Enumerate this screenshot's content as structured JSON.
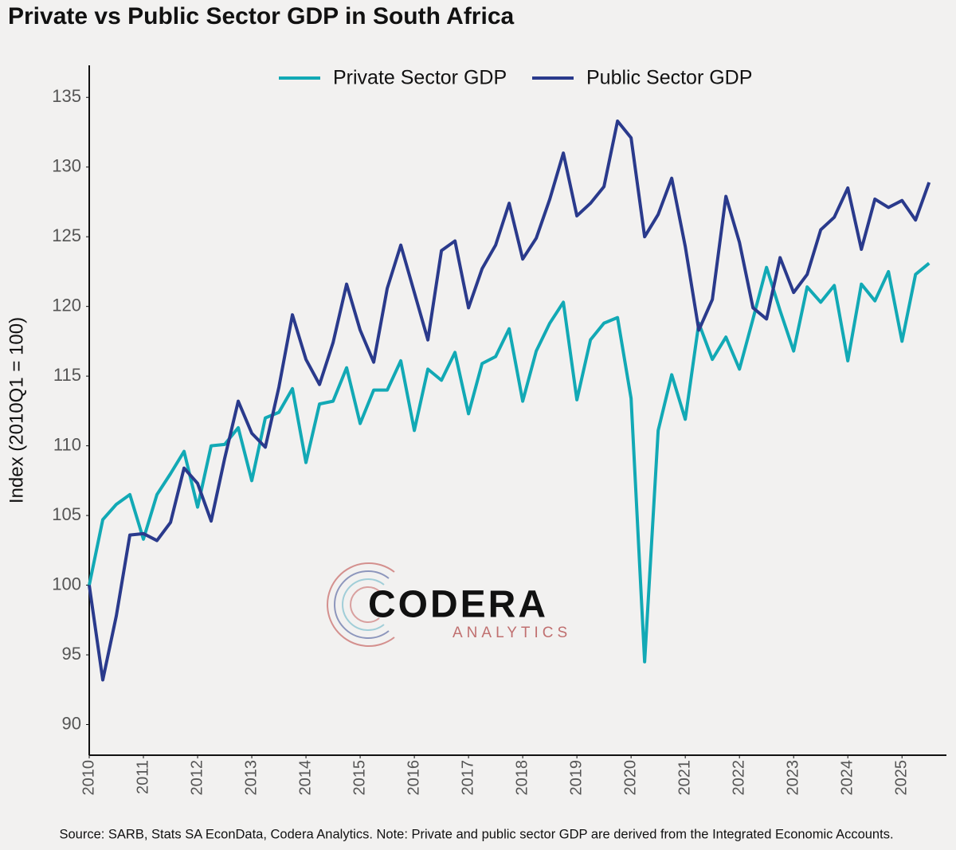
{
  "chart_data": {
    "type": "line",
    "title": "Private vs Public Sector GDP in South Africa",
    "y_label": "Index (2010Q1 = 100)",
    "source": "Source: SARB, Stats SA EconData, Codera Analytics. Note: Private and public sector GDP are derived from the Integrated Economic Accounts.",
    "logo": {
      "name": "CODERA",
      "tagline": "ANALYTICS"
    },
    "legend": "top",
    "xlim": [
      2010,
      2025.82
    ],
    "xticks": [
      2010,
      2011,
      2012,
      2013,
      2014,
      2015,
      2016,
      2017,
      2018,
      2019,
      2020,
      2021,
      2022,
      2023,
      2024,
      2025
    ],
    "ylim": [
      87.8,
      137.3
    ],
    "yticks": [
      90,
      95,
      100,
      105,
      110,
      115,
      120,
      125,
      130,
      135
    ],
    "x": [
      2010,
      2010.25,
      2010.5,
      2010.75,
      2011,
      2011.25,
      2011.5,
      2011.75,
      2012,
      2012.25,
      2012.5,
      2012.75,
      2013,
      2013.25,
      2013.5,
      2013.75,
      2014,
      2014.25,
      2014.5,
      2014.75,
      2015,
      2015.25,
      2015.5,
      2015.75,
      2016,
      2016.25,
      2016.5,
      2016.75,
      2017,
      2017.25,
      2017.5,
      2017.75,
      2018,
      2018.25,
      2018.5,
      2018.75,
      2019,
      2019.25,
      2019.5,
      2019.75,
      2020,
      2020.25,
      2020.5,
      2020.75,
      2021,
      2021.25,
      2021.5,
      2021.75,
      2022,
      2022.25,
      2022.5,
      2022.75,
      2023,
      2023.25,
      2023.5,
      2023.75,
      2024,
      2024.25,
      2024.5,
      2024.75,
      2025,
      2025.25,
      2025.5
    ],
    "series": [
      {
        "name": "Private Sector GDP",
        "color": "#12a9b5",
        "values": [
          100,
          104.7,
          105.8,
          106.5,
          103.3,
          106.5,
          108.0,
          109.6,
          105.6,
          110.0,
          110.1,
          111.3,
          107.5,
          112.0,
          112.4,
          114.1,
          108.8,
          113.0,
          113.2,
          115.6,
          111.6,
          114.0,
          114.0,
          116.1,
          111.1,
          115.5,
          114.7,
          116.7,
          112.3,
          115.9,
          116.4,
          118.4,
          113.2,
          116.8,
          118.8,
          120.3,
          113.3,
          117.6,
          118.8,
          119.2,
          113.4,
          94.5,
          111.1,
          115.1,
          111.9,
          118.8,
          116.2,
          117.8,
          115.5,
          119.1,
          122.8,
          119.7,
          116.8,
          121.4,
          120.3,
          121.5,
          116.1,
          121.6,
          120.4,
          122.5,
          117.5,
          122.3,
          123.1
        ]
      },
      {
        "name": "Public Sector GDP",
        "color": "#2a3a8c",
        "values": [
          100,
          93.2,
          97.8,
          103.6,
          103.7,
          103.2,
          104.5,
          108.4,
          107.3,
          104.6,
          109.1,
          113.2,
          110.9,
          109.9,
          114.2,
          119.4,
          116.2,
          114.4,
          117.4,
          121.6,
          118.3,
          116.0,
          121.3,
          124.4,
          121.0,
          117.6,
          124.0,
          124.7,
          119.9,
          122.7,
          124.4,
          127.4,
          123.4,
          124.9,
          127.7,
          131.0,
          126.5,
          127.4,
          128.6,
          133.3,
          132.1,
          125.0,
          126.6,
          129.2,
          124.3,
          118.3,
          120.5,
          127.9,
          124.6,
          119.9,
          119.1,
          123.5,
          121.0,
          122.3,
          125.5,
          126.4,
          128.5,
          124.1,
          127.7,
          127.1,
          127.6,
          126.2,
          128.9
        ]
      }
    ]
  }
}
